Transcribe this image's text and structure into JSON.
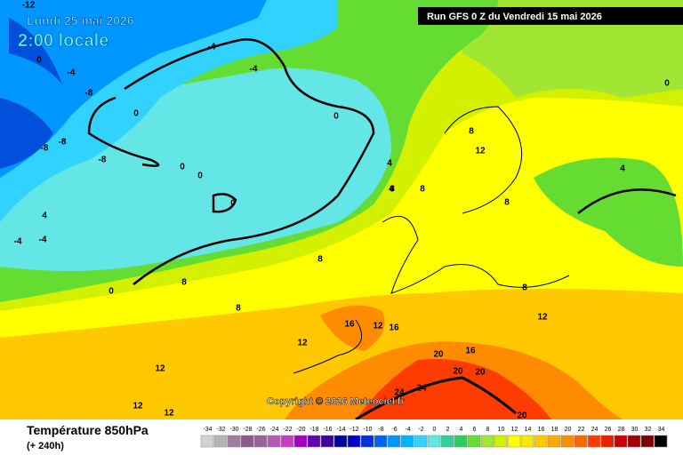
{
  "header": {
    "date": "Lundi 25 mai 2026",
    "time": "2:00 locale",
    "run": "Run GFS 0 Z du Vendredi 15 mai 2026"
  },
  "copyright": "Copyright © 2026 Meteociel.fr",
  "footer": {
    "title": "Température 850hPa",
    "lead": "(+ 240h)"
  },
  "legend": {
    "values": [
      -34,
      -32,
      -30,
      -28,
      -26,
      -24,
      -22,
      -20,
      -18,
      -16,
      -14,
      -12,
      -10,
      -8,
      -6,
      -4,
      -2,
      0,
      2,
      4,
      6,
      8,
      10,
      12,
      14,
      16,
      18,
      20,
      22,
      24,
      26,
      28,
      30,
      32,
      34
    ],
    "colors": [
      "#d2d2d2",
      "#b4b4b4",
      "#a07ca0",
      "#8c5a8c",
      "#966496",
      "#b45ab4",
      "#c83cc8",
      "#a000c8",
      "#6400b4",
      "#3c00a0",
      "#0000a0",
      "#0000c8",
      "#0032dc",
      "#0064f0",
      "#0096ff",
      "#00b4ff",
      "#32d2ff",
      "#64e6e6",
      "#32d296",
      "#32c864",
      "#64dc32",
      "#a0e632",
      "#d2f000",
      "#ffff00",
      "#ffe600",
      "#ffc800",
      "#ffaa00",
      "#ff8c00",
      "#ff6400",
      "#ff3c00",
      "#f01e00",
      "#c80000",
      "#a00000",
      "#780000",
      "#000000"
    ]
  },
  "contour_labels": [
    -12,
    -8,
    -8,
    -8,
    -8,
    -4,
    -4,
    -4,
    -4,
    -4,
    0,
    0,
    0,
    0,
    0,
    0,
    0,
    0,
    4,
    4,
    4,
    4,
    8,
    8,
    8,
    8,
    8,
    8,
    8,
    8,
    12,
    12,
    12,
    12,
    12,
    12,
    12,
    16,
    16,
    16,
    20,
    20,
    20,
    20,
    24,
    24
  ]
}
